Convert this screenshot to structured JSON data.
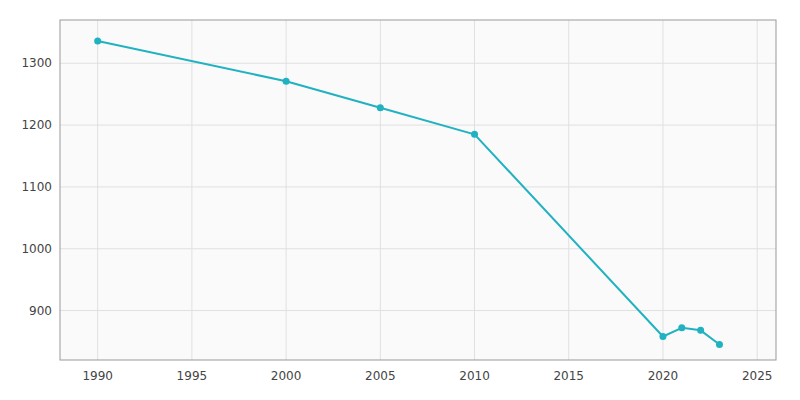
{
  "chart_data": {
    "type": "line",
    "x": [
      1990,
      2000,
      2005,
      2010,
      2020,
      2021,
      2022,
      2023
    ],
    "values": [
      1336,
      1271,
      1228,
      1185,
      858,
      872,
      868,
      845
    ],
    "color": "#20b2c0",
    "marker": "circle",
    "xlim": [
      1988,
      2026
    ],
    "ylim": [
      820,
      1370
    ],
    "xticks": [
      1990,
      1995,
      2000,
      2005,
      2010,
      2015,
      2020,
      2025
    ],
    "yticks": [
      900,
      1000,
      1100,
      1200,
      1300
    ],
    "grid": true
  }
}
